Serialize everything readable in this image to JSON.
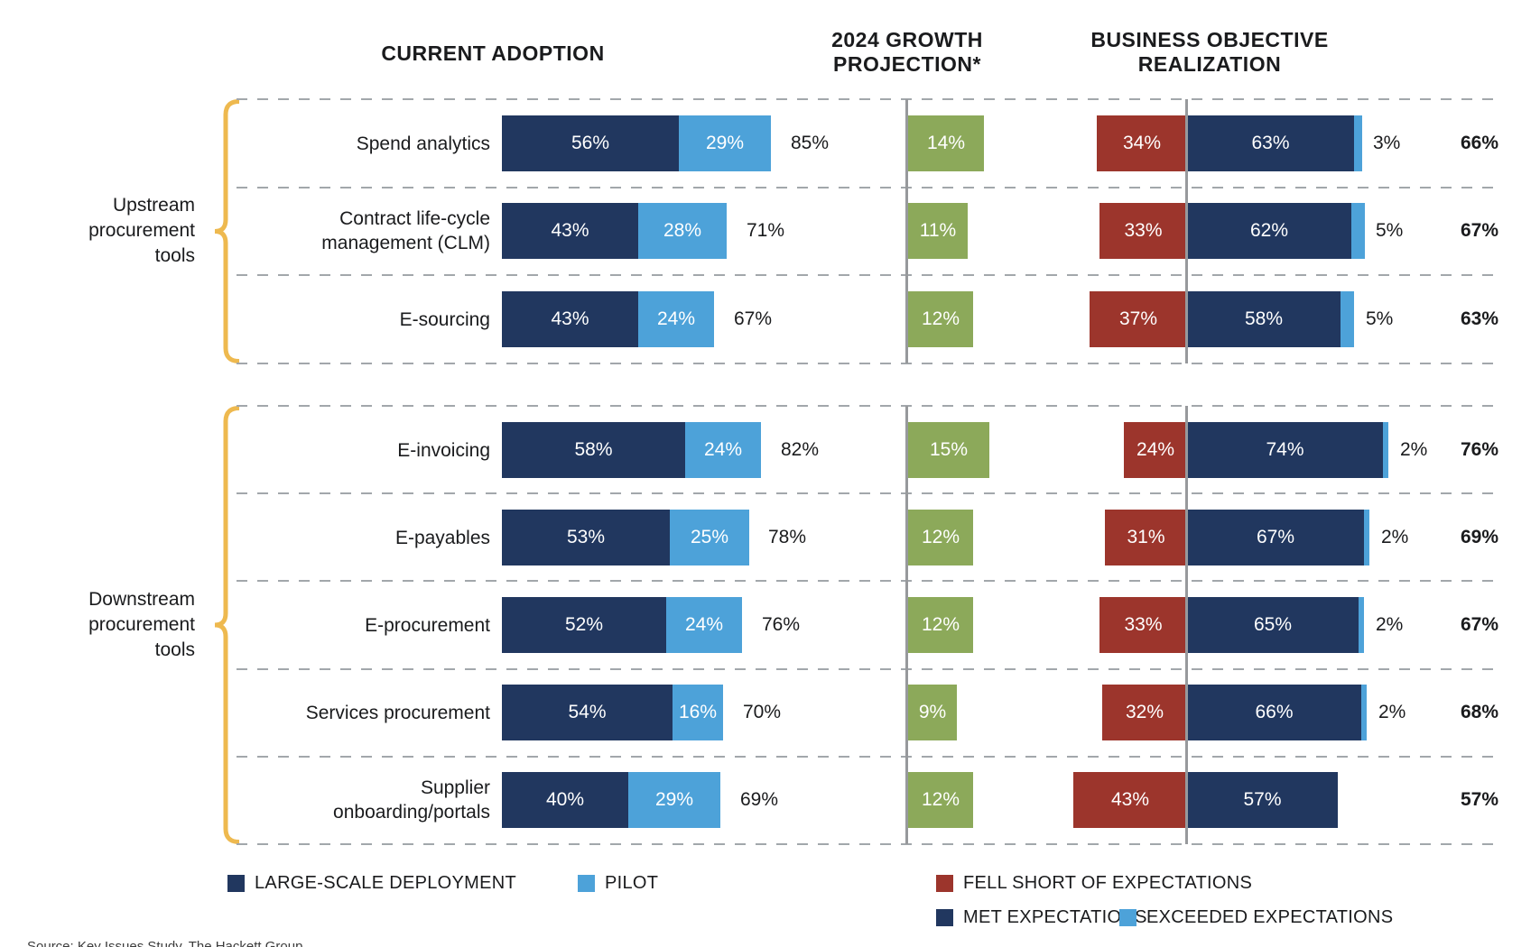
{
  "headers": {
    "adoption": "CURRENT ADOPTION",
    "growth": "2024 GROWTH\nPROJECTION*",
    "objective": "BUSINESS OBJECTIVE\nREALIZATION"
  },
  "groups": [
    {
      "label": "Upstream\nprocurement\ntools"
    },
    {
      "label": "Downstream\nprocurement\ntools"
    }
  ],
  "rows": [
    {
      "label": "Spend analytics",
      "adoption": {
        "large": 56,
        "large_label": "56%",
        "pilot": 29,
        "pilot_label": "29%",
        "total": 85,
        "total_label": "85%"
      },
      "growth": {
        "value": 14,
        "label": "14%"
      },
      "objective": {
        "fell_short": 34,
        "fell_short_label": "34%",
        "met": 63,
        "met_label": "63%",
        "exceeded": 3,
        "exceeded_label": "3%",
        "total": 66,
        "total_label": "66%"
      }
    },
    {
      "label": "Contract life-cycle\nmanagement (CLM)",
      "adoption": {
        "large": 43,
        "large_label": "43%",
        "pilot": 28,
        "pilot_label": "28%",
        "total": 71,
        "total_label": "71%"
      },
      "growth": {
        "value": 11,
        "label": "11%"
      },
      "objective": {
        "fell_short": 33,
        "fell_short_label": "33%",
        "met": 62,
        "met_label": "62%",
        "exceeded": 5,
        "exceeded_label": "5%",
        "total": 67,
        "total_label": "67%"
      }
    },
    {
      "label": "E-sourcing",
      "adoption": {
        "large": 43,
        "large_label": "43%",
        "pilot": 24,
        "pilot_label": "24%",
        "total": 67,
        "total_label": "67%"
      },
      "growth": {
        "value": 12,
        "label": "12%"
      },
      "objective": {
        "fell_short": 37,
        "fell_short_label": "37%",
        "met": 58,
        "met_label": "58%",
        "exceeded": 5,
        "exceeded_label": "5%",
        "total": 63,
        "total_label": "63%"
      }
    },
    {
      "label": "E-invoicing",
      "adoption": {
        "large": 58,
        "large_label": "58%",
        "pilot": 24,
        "pilot_label": "24%",
        "total": 82,
        "total_label": "82%"
      },
      "growth": {
        "value": 15,
        "label": "15%"
      },
      "objective": {
        "fell_short": 24,
        "fell_short_label": "24%",
        "met": 74,
        "met_label": "74%",
        "exceeded": 2,
        "exceeded_label": "2%",
        "total": 76,
        "total_label": "76%"
      }
    },
    {
      "label": "E-payables",
      "adoption": {
        "large": 53,
        "large_label": "53%",
        "pilot": 25,
        "pilot_label": "25%",
        "total": 78,
        "total_label": "78%"
      },
      "growth": {
        "value": 12,
        "label": "12%"
      },
      "objective": {
        "fell_short": 31,
        "fell_short_label": "31%",
        "met": 67,
        "met_label": "67%",
        "exceeded": 2,
        "exceeded_label": "2%",
        "total": 69,
        "total_label": "69%"
      }
    },
    {
      "label": "E-procurement",
      "adoption": {
        "large": 52,
        "large_label": "52%",
        "pilot": 24,
        "pilot_label": "24%",
        "total": 76,
        "total_label": "76%"
      },
      "growth": {
        "value": 12,
        "label": "12%"
      },
      "objective": {
        "fell_short": 33,
        "fell_short_label": "33%",
        "met": 65,
        "met_label": "65%",
        "exceeded": 2,
        "exceeded_label": "2%",
        "total": 67,
        "total_label": "67%"
      }
    },
    {
      "label": "Services procurement",
      "adoption": {
        "large": 54,
        "large_label": "54%",
        "pilot": 16,
        "pilot_label": "16%",
        "total": 70,
        "total_label": "70%"
      },
      "growth": {
        "value": 9,
        "label": "9%"
      },
      "objective": {
        "fell_short": 32,
        "fell_short_label": "32%",
        "met": 66,
        "met_label": "66%",
        "exceeded": 2,
        "exceeded_label": "2%",
        "total": 68,
        "total_label": "68%"
      }
    },
    {
      "label": "Supplier\nonboarding/portals",
      "adoption": {
        "large": 40,
        "large_label": "40%",
        "pilot": 29,
        "pilot_label": "29%",
        "total": 69,
        "total_label": "69%"
      },
      "growth": {
        "value": 12,
        "label": "12%"
      },
      "objective": {
        "fell_short": 43,
        "fell_short_label": "43%",
        "met": 57,
        "met_label": "57%",
        "exceeded": null,
        "exceeded_label": null,
        "total": 57,
        "total_label": "57%"
      }
    }
  ],
  "legend": {
    "items": [
      {
        "label": "LARGE-SCALE DEPLOYMENT",
        "color": "#21375f"
      },
      {
        "label": "PILOT",
        "color": "#4da2d9"
      },
      {
        "label": "FELL SHORT OF EXPECTATIONS",
        "color": "#9c352c"
      },
      {
        "label": "MET EXPECTATIONS",
        "color": "#21375f"
      },
      {
        "label": "EXCEEDED EXPECTATIONS",
        "color": "#4da2d9"
      }
    ]
  },
  "colors": {
    "large_scale": "#21375f",
    "pilot": "#4da2d9",
    "growth": "#8ca95a",
    "fell_short": "#9c352c",
    "met": "#21375f",
    "exceeded": "#4da2d9",
    "bracket": "#eeb94f"
  },
  "footnote": "Source: Key Issues Study, The Hackett Group",
  "chart_data": {
    "type": "bar",
    "orientation": "horizontal",
    "title": "",
    "column_headers": [
      "CURRENT ADOPTION",
      "2024 GROWTH PROJECTION*",
      "BUSINESS OBJECTIVE REALIZATION"
    ],
    "groups": [
      {
        "label": "Upstream procurement tools",
        "categories": [
          "Spend analytics",
          "Contract life-cycle management (CLM)",
          "E-sourcing"
        ]
      },
      {
        "label": "Downstream procurement tools",
        "categories": [
          "E-invoicing",
          "E-payables",
          "E-procurement",
          "Services procurement",
          "Supplier onboarding/portals"
        ]
      }
    ],
    "categories": [
      "Spend analytics",
      "Contract life-cycle management (CLM)",
      "E-sourcing",
      "E-invoicing",
      "E-payables",
      "E-procurement",
      "Services procurement",
      "Supplier onboarding/portals"
    ],
    "series": [
      {
        "name": "LARGE-SCALE DEPLOYMENT",
        "unit": "%",
        "values": [
          56,
          43,
          43,
          58,
          53,
          52,
          54,
          40
        ]
      },
      {
        "name": "PILOT",
        "unit": "%",
        "values": [
          29,
          28,
          24,
          24,
          25,
          24,
          16,
          29
        ]
      },
      {
        "name": "CURRENT ADOPTION TOTAL",
        "unit": "%",
        "values": [
          85,
          71,
          67,
          82,
          78,
          76,
          70,
          69
        ]
      },
      {
        "name": "2024 GROWTH PROJECTION",
        "unit": "%",
        "values": [
          14,
          11,
          12,
          15,
          12,
          12,
          9,
          12
        ]
      },
      {
        "name": "FELL SHORT OF EXPECTATIONS",
        "unit": "%",
        "values": [
          34,
          33,
          37,
          24,
          31,
          33,
          32,
          43
        ]
      },
      {
        "name": "MET EXPECTATIONS",
        "unit": "%",
        "values": [
          63,
          62,
          58,
          74,
          67,
          65,
          66,
          57
        ]
      },
      {
        "name": "EXCEEDED EXPECTATIONS",
        "unit": "%",
        "values": [
          3,
          5,
          5,
          2,
          2,
          2,
          2,
          null
        ]
      },
      {
        "name": "BUSINESS OBJECTIVE REALIZATION TOTAL",
        "unit": "%",
        "values": [
          66,
          67,
          63,
          76,
          69,
          67,
          68,
          57
        ]
      }
    ],
    "legend_position": "bottom",
    "grid": "dashed horizontal row separators; gray vertical baselines at growth axis and objective divider"
  }
}
